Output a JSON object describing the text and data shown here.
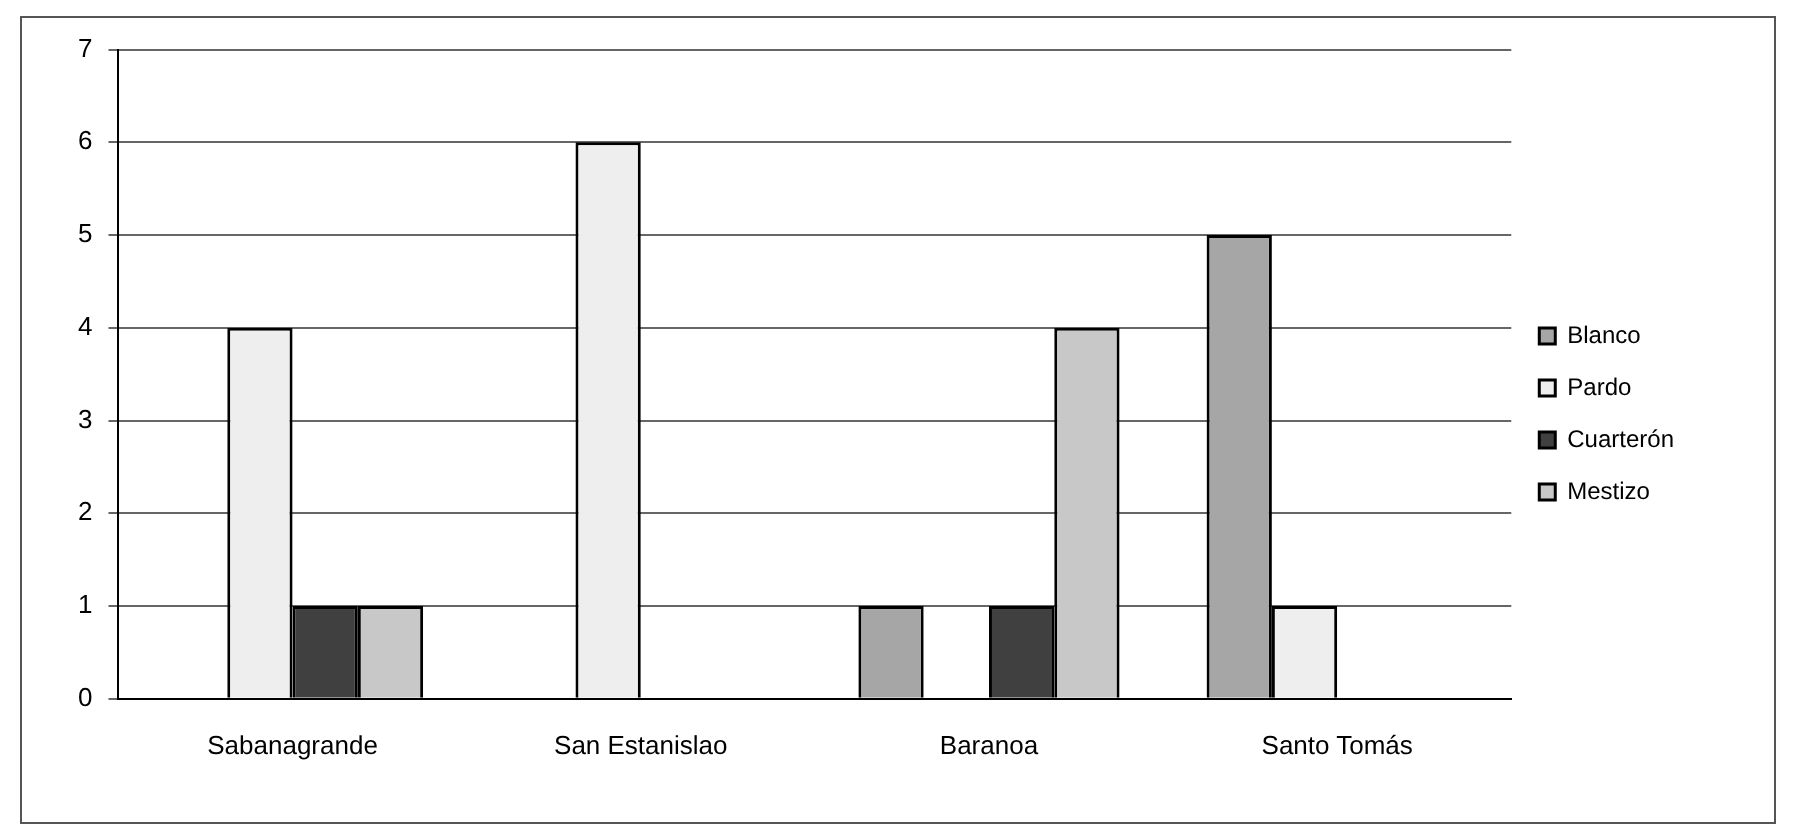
{
  "chart_data": {
    "type": "bar",
    "categories": [
      "Sabanagrande",
      "San Estanislao",
      "Baranoa",
      "Santo Tomás"
    ],
    "series": [
      {
        "name": "Blanco",
        "color": "#a6a6a6",
        "values": [
          0,
          0,
          1,
          5
        ]
      },
      {
        "name": "Pardo",
        "color": "#eeeeee",
        "values": [
          4,
          6,
          0,
          1
        ]
      },
      {
        "name": "Cuarterón",
        "color": "#404040",
        "values": [
          1,
          0,
          1,
          0
        ]
      },
      {
        "name": "Mestizo",
        "color": "#c8c8c8",
        "values": [
          1,
          0,
          4,
          0
        ]
      }
    ],
    "ylim": [
      0,
      7
    ],
    "yticks": [
      0,
      1,
      2,
      3,
      4,
      5,
      6,
      7
    ],
    "grid": "y",
    "legend": "right"
  }
}
